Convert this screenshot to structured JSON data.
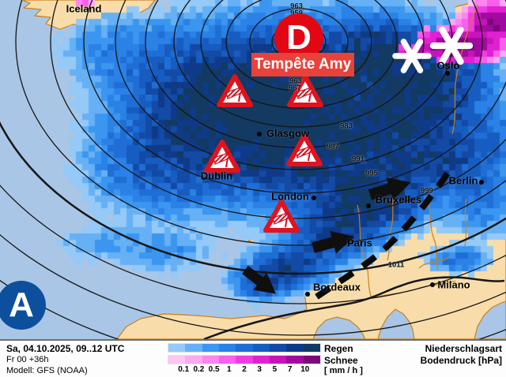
{
  "title_block": {
    "valid_time": "Sa, 04.10.2025, 09..12 UTC",
    "run_info": "Fr 00 +36h",
    "model": "Modell: GFS (NOAA)"
  },
  "legend": {
    "rain_label": "Regen",
    "snow_label": "Schnee",
    "unit_label": "[ mm / h ]",
    "right_line1": "Niederschlagsart",
    "right_line2": "Bodendruck [hPa]",
    "thresholds": [
      "0.1",
      "0.2",
      "0.5",
      "1",
      "2",
      "3",
      "5",
      "7",
      "10"
    ],
    "rain_colors": [
      "#94c9f8",
      "#66b0f5",
      "#3b96f0",
      "#2a81e6",
      "#1f6ed6",
      "#175cc0",
      "#124aa6",
      "#0e3a88",
      "#123a62"
    ],
    "snow_colors": [
      "#fcc6f3",
      "#fba9f1",
      "#fa86ef",
      "#f75fec",
      "#ef3ce2",
      "#e021d0",
      "#c714ba",
      "#a10a9e",
      "#7c077e"
    ]
  },
  "map": {
    "low_symbol": "D",
    "low_name": "Tempête Amy",
    "high_symbol": "A",
    "colors": {
      "ocean": "#a9c6e6",
      "land": "#f8ddab",
      "border": "#c9801f",
      "isobar": "#161616",
      "low_badge": "#e30613",
      "high_badge": "#0c4f9d",
      "warning_red": "#e0131e"
    },
    "cities": [
      {
        "name": "Iceland"
      },
      {
        "name": "Oslo"
      },
      {
        "name": "Glasgow"
      },
      {
        "name": "Dublin"
      },
      {
        "name": "London"
      },
      {
        "name": "Bruxelles"
      },
      {
        "name": "Berlin"
      },
      {
        "name": "Paris"
      },
      {
        "name": "Bordeaux"
      },
      {
        "name": "Milano"
      }
    ],
    "pressure_labels": [
      {
        "text": "963"
      },
      {
        "text": "959"
      },
      {
        "text": "963"
      },
      {
        "text": "967"
      },
      {
        "text": "983"
      },
      {
        "text": "987"
      },
      {
        "text": "991"
      },
      {
        "text": "995"
      },
      {
        "text": "999"
      },
      {
        "text": "1011"
      }
    ]
  }
}
